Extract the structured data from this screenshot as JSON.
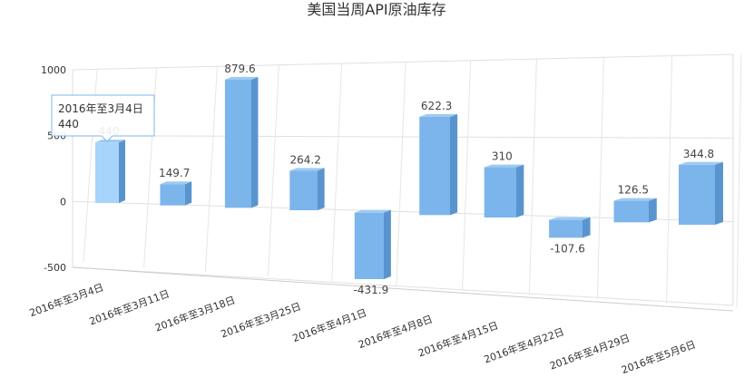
{
  "chart_data": {
    "type": "bar3d",
    "title": "美国当周API原油库存",
    "categories": [
      "2016年至3月4日",
      "2016年至3月11日",
      "2016年至3月18日",
      "2016年至3月25日",
      "2016年至4月1日",
      "2016年至4月8日",
      "2016年至4月15日",
      "2016年至4月22日",
      "2016年至4月29日",
      "2016年至5月6日"
    ],
    "values": [
      440,
      149.7,
      879.6,
      264.2,
      -431.9,
      622.3,
      310,
      -107.6,
      126.5,
      344.8
    ],
    "color": "#7cb5ec",
    "ylim": [
      -500,
      1000
    ],
    "yticks": [
      -500,
      0,
      500,
      1000
    ],
    "grid": true
  }
}
